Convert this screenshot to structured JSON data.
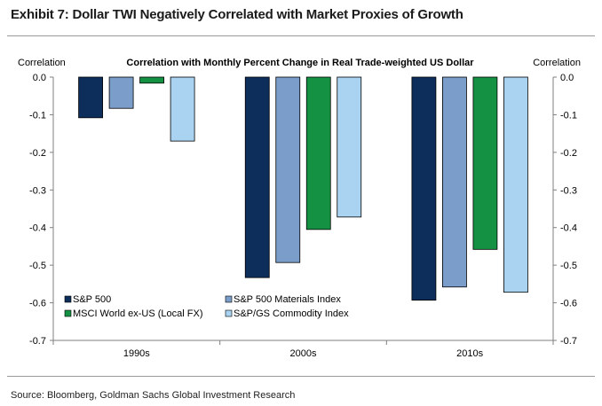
{
  "exhibit": {
    "title": "Exhibit 7: Dollar TWI Negatively Correlated with Market Proxies of Growth",
    "source": "Source: Bloomberg, Goldman Sachs Global Investment Research"
  },
  "chart_data": {
    "type": "bar",
    "title": "Correlation with Monthly Percent Change in Real Trade-weighted US Dollar",
    "ylabel_left": "Correlation",
    "ylabel_right": "Correlation",
    "xlabel": "",
    "categories": [
      "1990s",
      "2000s",
      "2010s"
    ],
    "ylim": [
      -0.7,
      0.0
    ],
    "yticks": [
      0.0,
      -0.1,
      -0.2,
      -0.3,
      -0.4,
      -0.5,
      -0.6,
      -0.7
    ],
    "ytick_labels": [
      "0.0",
      "-0.1",
      "-0.2",
      "-0.3",
      "-0.4",
      "-0.5",
      "-0.6",
      "-0.7"
    ],
    "grid": false,
    "legend_position": "bottom-left",
    "series": [
      {
        "name": "S&P 500",
        "color": "#0d2d5a",
        "values": [
          -0.108,
          -0.533,
          -0.593
        ]
      },
      {
        "name": "S&P 500 Materials Index",
        "color": "#7b9dc9",
        "values": [
          -0.083,
          -0.493,
          -0.558
        ]
      },
      {
        "name": "MSCI World ex-US (Local FX)",
        "color": "#149142",
        "values": [
          -0.016,
          -0.405,
          -0.458
        ]
      },
      {
        "name": "S&P/GS Commodity Index",
        "color": "#a9d3f0",
        "values": [
          -0.17,
          -0.372,
          -0.572
        ]
      }
    ]
  }
}
